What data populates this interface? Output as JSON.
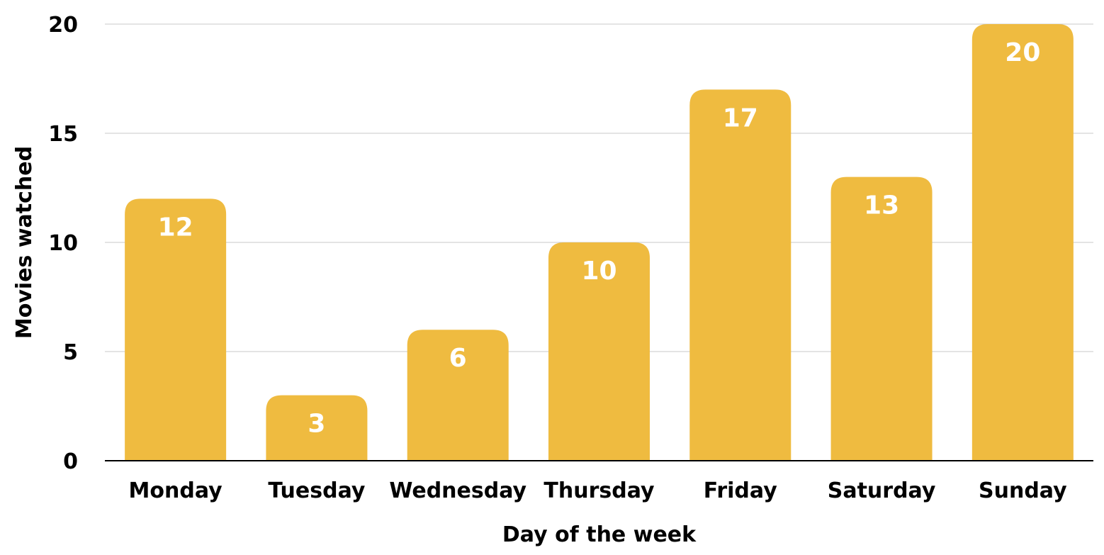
{
  "chart_data": {
    "type": "bar",
    "title": "",
    "xlabel": "Day of the week",
    "ylabel": "Movies watched",
    "categories": [
      "Monday",
      "Tuesday",
      "Wednesday",
      "Thursday",
      "Friday",
      "Saturday",
      "Sunday"
    ],
    "series": [
      {
        "values": [
          12,
          3,
          6,
          10,
          17,
          13,
          20
        ]
      }
    ],
    "ylim": [
      0,
      20
    ],
    "yticks": [
      0,
      5,
      10,
      15,
      20
    ],
    "grid": true,
    "legend": "none",
    "data_labels": true,
    "colors": {
      "bar": "#EFBB40",
      "gridline": "#C8C8C8",
      "axis": "#000000",
      "data_label": "#FFFFFF"
    }
  }
}
